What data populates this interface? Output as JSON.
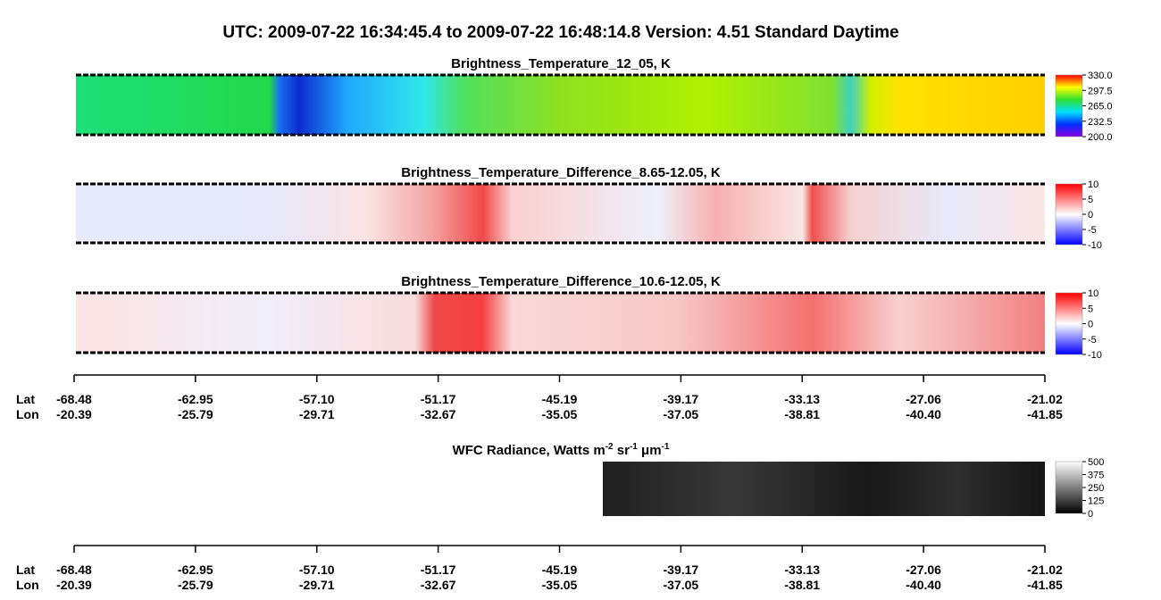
{
  "title": "UTC:  2009-07-22   16:34:45.4  to  2009-07-22   16:48:14.8    Version: 4.51  Standard Daytime",
  "panels": [
    {
      "title": "Brightness_Temperature_12_05, K",
      "colorbar": [
        "330.0",
        "297.5",
        "265.0",
        "232.5",
        "200.0"
      ]
    },
    {
      "title": "Brightness_Temperature_Difference_8.65-12.05, K",
      "colorbar": [
        "10",
        "5",
        "0",
        "-5",
        "-10"
      ]
    },
    {
      "title": "Brightness_Temperature_Difference_10.6-12.05, K",
      "colorbar": [
        "10",
        "5",
        "0",
        "-5",
        "-10"
      ]
    }
  ],
  "axis": {
    "lat_label": "Lat",
    "lon_label": "Lon",
    "lat": [
      "-68.48",
      "-62.95",
      "-57.10",
      "-51.17",
      "-45.19",
      "-39.17",
      "-33.13",
      "-27.06",
      "-21.02"
    ],
    "lon": [
      "-20.39",
      "-25.79",
      "-29.71",
      "-32.67",
      "-35.05",
      "-37.05",
      "-38.81",
      "-40.40",
      "-41.85"
    ]
  },
  "wfc": {
    "title_parts": [
      "WFC Radiance, Watts m",
      "-2",
      " sr",
      "-1",
      " μm",
      "-1"
    ],
    "colorbar": [
      "500",
      "375",
      "250",
      "125",
      "0"
    ]
  }
}
